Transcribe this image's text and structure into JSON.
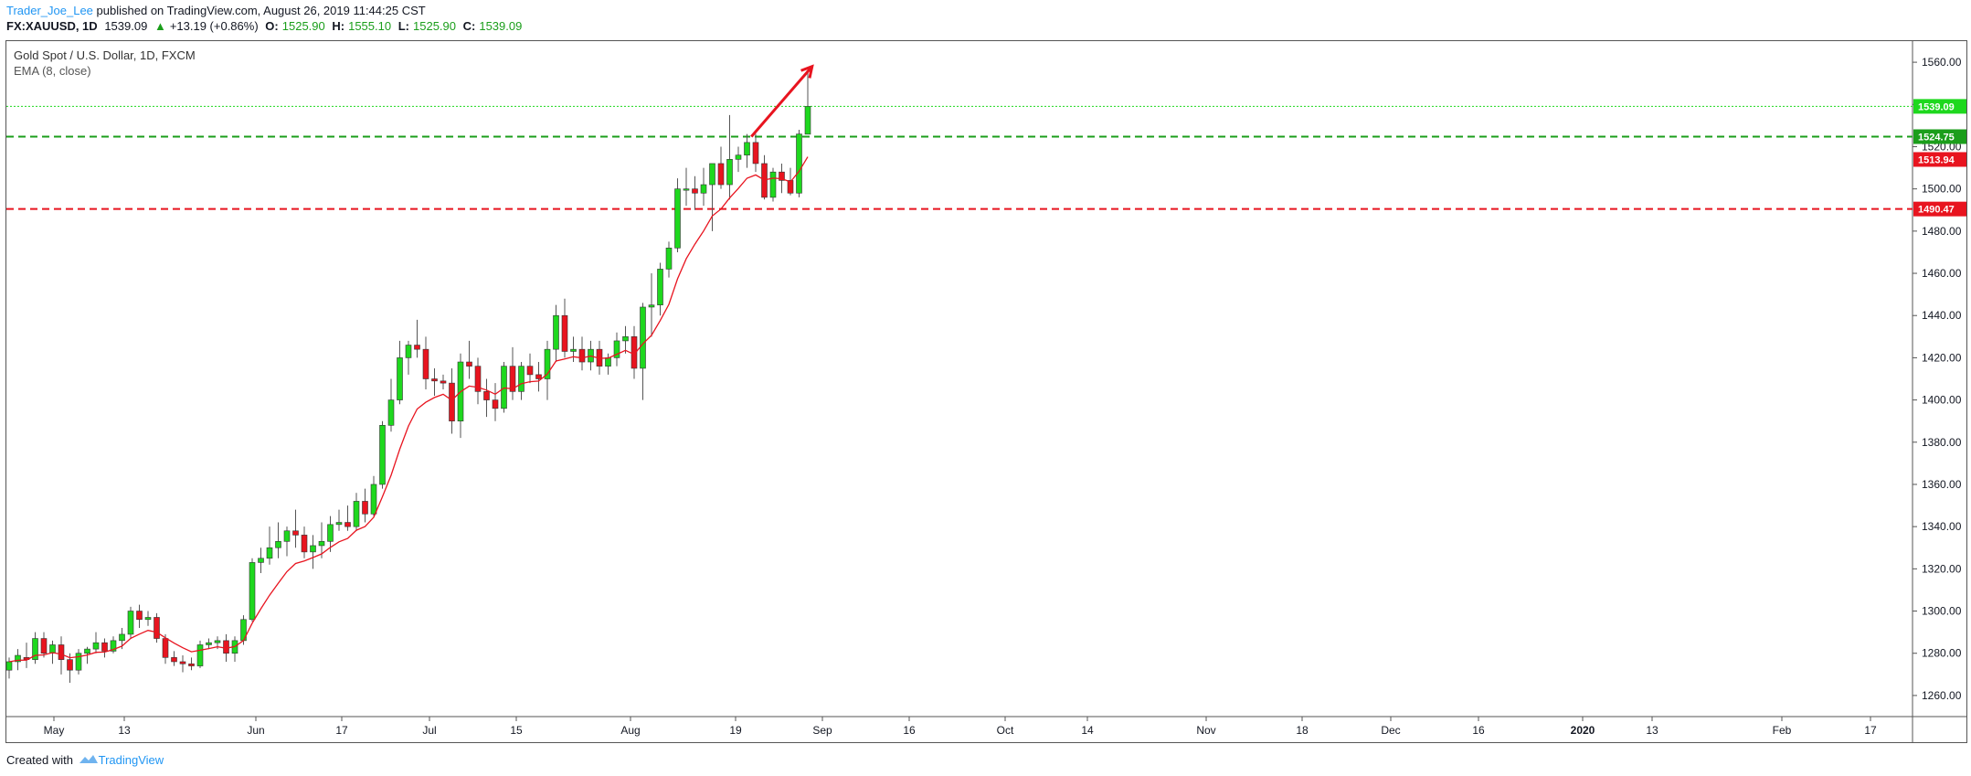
{
  "header": {
    "author": "Trader_Joe_Lee",
    "published_text": "published on TradingView.com, August 26, 2019 11:44:25 CST",
    "symbol": "FX:XAUUSD, 1D",
    "last": "1539.09",
    "change_arrow": "▲",
    "change": "+13.19 (+0.86%)",
    "open_label": "O:",
    "open": "1525.90",
    "high_label": "H:",
    "high": "1555.10",
    "low_label": "L:",
    "low": "1525.90",
    "close_label": "C:",
    "close": "1539.09"
  },
  "legend": {
    "instrument": "Gold Spot / U.S. Dollar, 1D, FXCM",
    "indicator": "EMA (8, close)"
  },
  "footer": {
    "created_with": "Created with",
    "brand": "TradingView",
    "brand_icon": "tradingview-logo-icon"
  },
  "colors": {
    "up": "#1ed81e",
    "down": "#e8141f",
    "ema": "#e8141f",
    "resistance": "#1b9e1b",
    "support": "#e8141f",
    "last_price_line": "#1ed81e",
    "arrow": "#e8141f",
    "axis_text": "#131722"
  },
  "chart_data": {
    "type": "candlestick",
    "title": "Gold Spot / U.S. Dollar, 1D, FXCM",
    "ylim": [
      1250,
      1570
    ],
    "y_ticks": [
      1260,
      1280,
      1300,
      1320,
      1340,
      1360,
      1380,
      1400,
      1420,
      1440,
      1460,
      1480,
      1500,
      1520,
      1540,
      1560
    ],
    "x_tick_labels": [
      "May",
      "13",
      "Jun",
      "17",
      "Jul",
      "15",
      "Aug",
      "19",
      "Sep",
      "16",
      "Oct",
      "14",
      "Nov",
      "18",
      "Dec",
      "16",
      "2020",
      "13",
      "Feb",
      "17"
    ],
    "x_tick_bold": [
      "2020"
    ],
    "horizontal_lines": [
      {
        "name": "resistance",
        "value": 1524.75,
        "label": "1524.75",
        "style": "dashed",
        "color": "#1b9e1b"
      },
      {
        "name": "support",
        "value": 1490.47,
        "label": "1490.47",
        "style": "dashed",
        "color": "#e8141f"
      },
      {
        "name": "last-price",
        "value": 1539.09,
        "label": "1539.09",
        "style": "dotted",
        "color": "#1ed81e"
      }
    ],
    "price_labels": [
      {
        "value": 1539.09,
        "label": "1539.09",
        "color": "#1ed81e"
      },
      {
        "value": 1524.75,
        "label": "1524.75",
        "color": "#1b9e1b"
      },
      {
        "value": 1513.94,
        "label": "1513.94",
        "color": "#e8141f"
      },
      {
        "value": 1490.47,
        "label": "1490.47",
        "color": "#e8141f"
      }
    ],
    "ema_period": 8,
    "candles": [
      [
        1272,
        1278,
        1268,
        1276
      ],
      [
        1276,
        1282,
        1272,
        1279
      ],
      [
        1278,
        1285,
        1273,
        1277
      ],
      [
        1277,
        1290,
        1275,
        1287
      ],
      [
        1287,
        1290,
        1278,
        1280
      ],
      [
        1280,
        1286,
        1275,
        1284
      ],
      [
        1284,
        1288,
        1270,
        1277
      ],
      [
        1277,
        1280,
        1266,
        1272
      ],
      [
        1272,
        1282,
        1270,
        1280
      ],
      [
        1280,
        1283,
        1275,
        1282
      ],
      [
        1282,
        1290,
        1280,
        1285
      ],
      [
        1285,
        1287,
        1278,
        1281
      ],
      [
        1281,
        1288,
        1280,
        1286
      ],
      [
        1286,
        1292,
        1282,
        1289
      ],
      [
        1289,
        1302,
        1287,
        1300
      ],
      [
        1300,
        1303,
        1292,
        1296
      ],
      [
        1296,
        1300,
        1293,
        1297
      ],
      [
        1297,
        1299,
        1285,
        1287
      ],
      [
        1287,
        1289,
        1275,
        1278
      ],
      [
        1278,
        1281,
        1274,
        1276
      ],
      [
        1276,
        1279,
        1271,
        1275
      ],
      [
        1275,
        1278,
        1272,
        1274
      ],
      [
        1274,
        1286,
        1273,
        1284
      ],
      [
        1284,
        1287,
        1282,
        1285
      ],
      [
        1285,
        1288,
        1282,
        1286
      ],
      [
        1286,
        1289,
        1276,
        1280
      ],
      [
        1280,
        1288,
        1276,
        1286
      ],
      [
        1286,
        1298,
        1284,
        1296
      ],
      [
        1296,
        1325,
        1295,
        1323
      ],
      [
        1323,
        1330,
        1318,
        1325
      ],
      [
        1325,
        1340,
        1322,
        1330
      ],
      [
        1330,
        1342,
        1325,
        1333
      ],
      [
        1333,
        1340,
        1326,
        1338
      ],
      [
        1338,
        1348,
        1330,
        1336
      ],
      [
        1336,
        1340,
        1325,
        1328
      ],
      [
        1328,
        1336,
        1320,
        1331
      ],
      [
        1331,
        1342,
        1325,
        1333
      ],
      [
        1333,
        1345,
        1328,
        1341
      ],
      [
        1341,
        1348,
        1338,
        1342
      ],
      [
        1342,
        1350,
        1338,
        1340
      ],
      [
        1340,
        1356,
        1338,
        1352
      ],
      [
        1352,
        1358,
        1342,
        1346
      ],
      [
        1346,
        1364,
        1345,
        1360
      ],
      [
        1360,
        1390,
        1358,
        1388
      ],
      [
        1388,
        1410,
        1385,
        1400
      ],
      [
        1400,
        1428,
        1398,
        1420
      ],
      [
        1420,
        1428,
        1412,
        1426
      ],
      [
        1426,
        1438,
        1420,
        1424
      ],
      [
        1424,
        1430,
        1405,
        1410
      ],
      [
        1410,
        1415,
        1402,
        1409
      ],
      [
        1409,
        1412,
        1405,
        1408
      ],
      [
        1408,
        1415,
        1384,
        1390
      ],
      [
        1390,
        1422,
        1382,
        1418
      ],
      [
        1418,
        1428,
        1410,
        1416
      ],
      [
        1416,
        1420,
        1398,
        1404
      ],
      [
        1404,
        1410,
        1392,
        1400
      ],
      [
        1400,
        1408,
        1390,
        1396
      ],
      [
        1396,
        1418,
        1394,
        1416
      ],
      [
        1416,
        1425,
        1400,
        1404
      ],
      [
        1404,
        1418,
        1400,
        1416
      ],
      [
        1416,
        1422,
        1408,
        1412
      ],
      [
        1412,
        1418,
        1404,
        1410
      ],
      [
        1410,
        1428,
        1400,
        1424
      ],
      [
        1424,
        1445,
        1418,
        1440
      ],
      [
        1440,
        1448,
        1420,
        1423
      ],
      [
        1423,
        1430,
        1418,
        1424
      ],
      [
        1424,
        1430,
        1414,
        1418
      ],
      [
        1418,
        1428,
        1414,
        1424
      ],
      [
        1424,
        1428,
        1412,
        1416
      ],
      [
        1416,
        1422,
        1412,
        1420
      ],
      [
        1420,
        1432,
        1416,
        1428
      ],
      [
        1428,
        1435,
        1422,
        1430
      ],
      [
        1430,
        1435,
        1410,
        1415
      ],
      [
        1415,
        1446,
        1400,
        1444
      ],
      [
        1444,
        1460,
        1430,
        1445
      ],
      [
        1445,
        1465,
        1440,
        1462
      ],
      [
        1462,
        1475,
        1458,
        1472
      ],
      [
        1472,
        1505,
        1470,
        1500
      ],
      [
        1500,
        1510,
        1492,
        1500
      ],
      [
        1500,
        1506,
        1490,
        1498
      ],
      [
        1498,
        1510,
        1492,
        1502
      ],
      [
        1502,
        1512,
        1480,
        1512
      ],
      [
        1512,
        1520,
        1500,
        1502
      ],
      [
        1502,
        1535,
        1495,
        1514
      ],
      [
        1514,
        1520,
        1508,
        1516
      ],
      [
        1516,
        1526,
        1510,
        1522
      ],
      [
        1522,
        1526,
        1508,
        1512
      ],
      [
        1512,
        1516,
        1495,
        1496
      ],
      [
        1496,
        1510,
        1494,
        1508
      ],
      [
        1508,
        1512,
        1498,
        1504
      ],
      [
        1504,
        1510,
        1497,
        1498
      ],
      [
        1498,
        1528,
        1496,
        1526
      ],
      [
        1525.9,
        1555.1,
        1525.9,
        1539.09
      ]
    ],
    "candle_ohlc_order": [
      "open",
      "high",
      "low",
      "close"
    ],
    "annotation_arrow": {
      "from_value": 1524.75,
      "to_value": 1558,
      "color": "#e8141f"
    }
  }
}
